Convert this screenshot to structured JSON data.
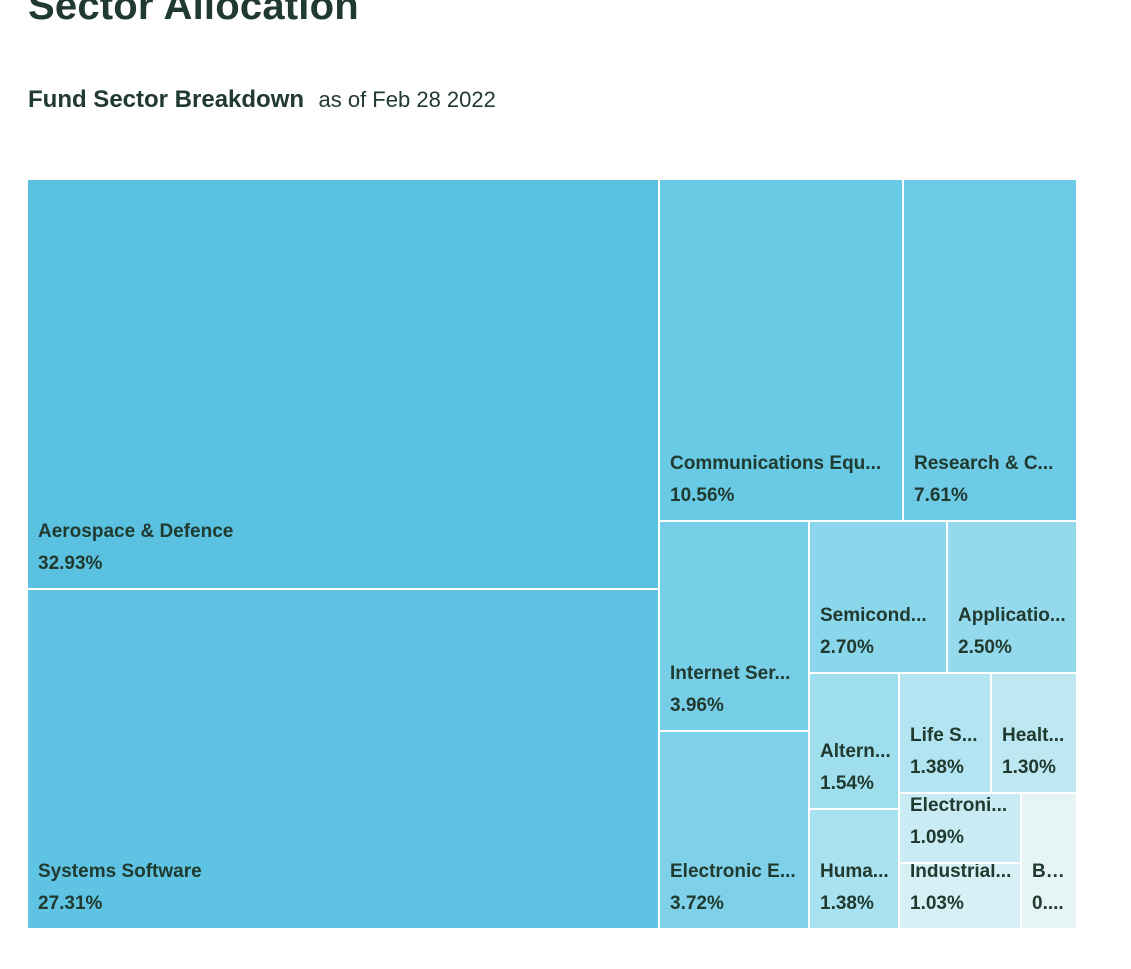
{
  "header": {
    "title": "Sector Allocation",
    "breakdown_title": "Fund Sector Breakdown",
    "as_of": "as of Feb 28 2022"
  },
  "chart_data": {
    "type": "treemap",
    "title": "Fund Sector Breakdown",
    "subtitle": "as of Feb 28 2022",
    "unit": "%",
    "items": [
      {
        "name": "Aerospace & Defence",
        "label": "Aerospace & Defence",
        "value_label": "32.93%",
        "value": 32.93,
        "color": "#5ac1e0"
      },
      {
        "name": "Systems Software",
        "label": "Systems Software",
        "value_label": "27.31%",
        "value": 27.31,
        "color": "#5fc4e3"
      },
      {
        "name": "Communications Equipment",
        "label": "Communications Equ...",
        "value_label": "10.56%",
        "value": 10.56,
        "color": "#69cae5"
      },
      {
        "name": "Research & Consulting",
        "label": "Research & C...",
        "value_label": "7.61%",
        "value": 7.61,
        "color": "#6ecbe6"
      },
      {
        "name": "Internet Services",
        "label": "Internet Ser...",
        "value_label": "3.96%",
        "value": 3.96,
        "color": "#76cee7"
      },
      {
        "name": "Electronic Equipment",
        "label": "Electronic E...",
        "value_label": "3.72%",
        "value": 3.72,
        "color": "#7fd1e9"
      },
      {
        "name": "Semiconductors",
        "label": "Semicond...",
        "value_label": "2.70%",
        "value": 2.7,
        "color": "#8ad6eb"
      },
      {
        "name": "Application Software",
        "label": "Applicatio...",
        "value_label": "2.50%",
        "value": 2.5,
        "color": "#94daec"
      },
      {
        "name": "Alternative",
        "label": "Altern...",
        "value_label": "1.54%",
        "value": 1.54,
        "color": "#9edeed"
      },
      {
        "name": "Human",
        "label": "Huma...",
        "value_label": "1.38%",
        "value": 1.38,
        "color": "#a8e1ef"
      },
      {
        "name": "Life Sciences",
        "label": "Life S...",
        "value_label": "1.38%",
        "value": 1.38,
        "color": "#b2e5f1"
      },
      {
        "name": "Health",
        "label": "Healt...",
        "value_label": "1.30%",
        "value": 1.3,
        "color": "#bde8f2"
      },
      {
        "name": "Electronic",
        "label": "Electroni...",
        "value_label": "1.09%",
        "value": 1.09,
        "color": "#c9ecf4"
      },
      {
        "name": "Industrial",
        "label": "Industrial...",
        "value_label": "1.03%",
        "value": 1.03,
        "color": "#d6f0f5"
      },
      {
        "name": "Bu",
        "label": "Bu...",
        "value_label": "0....",
        "value": 0.5,
        "color": "#e6f4f6"
      }
    ]
  }
}
